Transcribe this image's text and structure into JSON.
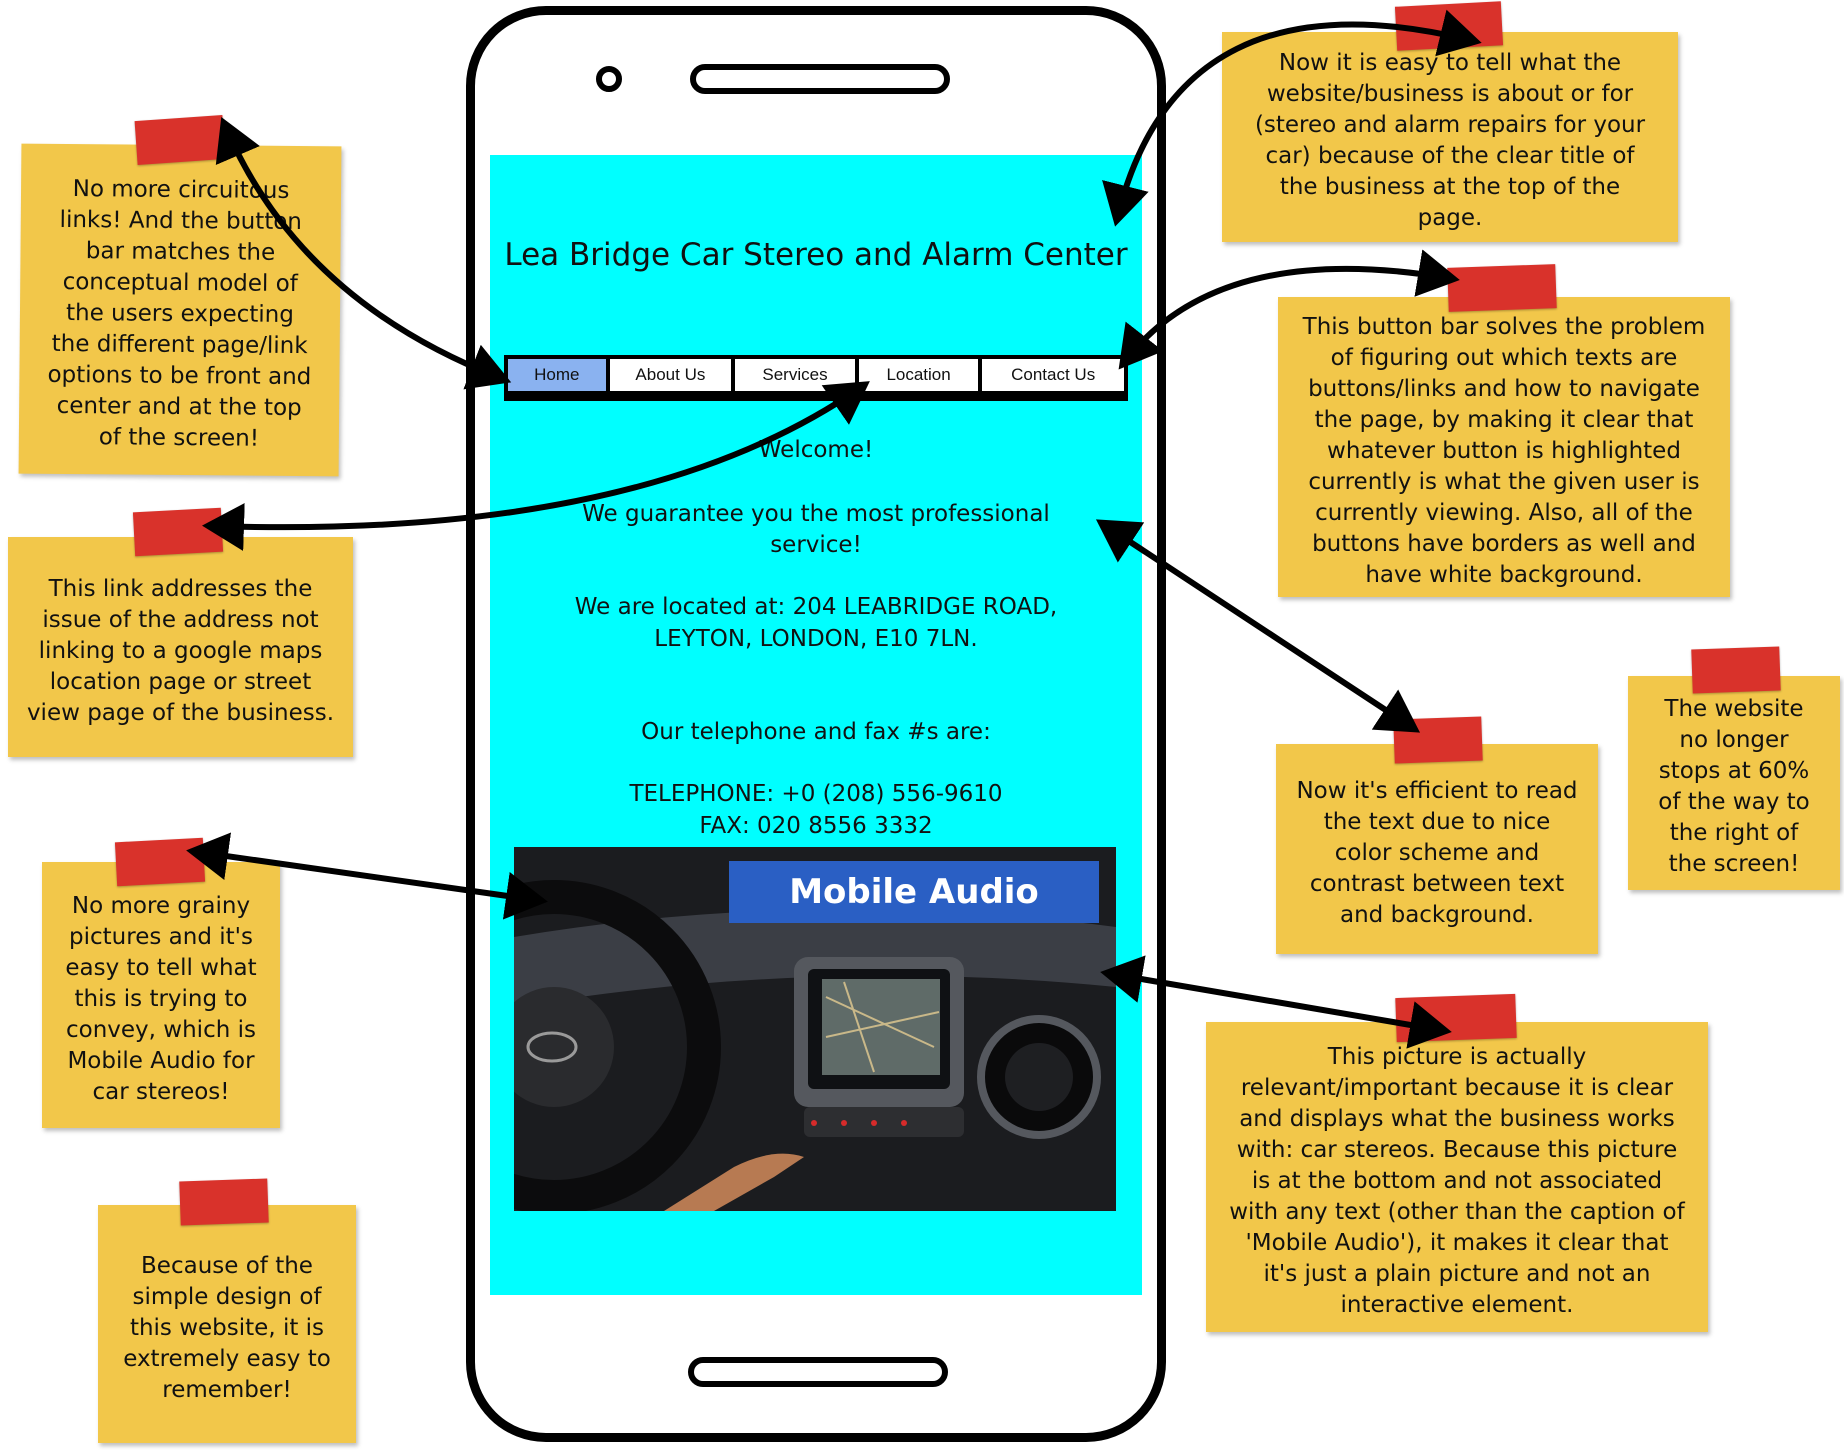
{
  "website": {
    "title": "Lea Bridge Car Stereo and Alarm Center",
    "nav": [
      {
        "label": "Home",
        "active": true
      },
      {
        "label": "About Us",
        "active": false
      },
      {
        "label": "Services",
        "active": false
      },
      {
        "label": "Location",
        "active": false
      },
      {
        "label": "Contact Us",
        "active": false
      }
    ],
    "welcome": "Welcome!",
    "guarantee": "We guarantee you the most professional service!",
    "location_line1": "We are located at: 204 LEABRIDGE ROAD,",
    "location_line2": "LEYTON, LONDON, E10 7LN.",
    "contact_intro": "Our telephone and fax #s are:",
    "telephone": "TELEPHONE: +0 (208) 556-9610",
    "fax": "FAX: 020 8556 3332",
    "image_caption": "Mobile Audio",
    "colors": {
      "background": "#00ffff",
      "active_button": "#8ab2f0",
      "note": "#f2c74a",
      "tape": "#d9322b",
      "banner": "#2a5fc4"
    }
  },
  "notes": {
    "circuitous": "No more circuitous\nlinks!  And the button\nbar matches the\nconceptual model of\nthe users expecting\nthe different page/link\noptions to be front and\ncenter and at the top\nof the screen!",
    "location_link": "This link addresses the\nissue of the address not\nlinking to a google maps\nlocation page or street\nview page of the business.",
    "grainy": "No more grainy\npictures and it's\neasy to tell what\nthis is trying to\nconvey, which is\nMobile Audio for\ncar stereos!",
    "simple": "Because of the\nsimple design of\nthis website, it is\nextremely easy to\nremember!",
    "title": "Now it is easy to tell what the\nwebsite/business is about or for\n(stereo and alarm repairs for your\ncar) because of the clear title of\nthe business at the top of the\npage.",
    "button_bar": "This button bar solves the problem\nof figuring out which texts are\nbuttons/links and how to navigate\nthe page, by making it clear that\nwhatever button is highlighted\ncurrently is what the given user is\ncurrently viewing.  Also, all of the\nbuttons have borders as well and\nhave white background.",
    "efficient": "Now it's efficient to read\nthe text due to nice\ncolor scheme and\ncontrast between text\nand background.",
    "sixty": "The website\nno longer\nstops at 60%\nof the way to\nthe right of\nthe screen!",
    "picture": "This picture is actually\nrelevant/important because it is clear\nand displays what the business works\nwith: car stereos.  Because this picture\nis at the bottom and not associated\nwith any text (other than the caption of\n'Mobile Audio'), it makes it clear that\nit's just a plain picture and not an\ninteractive element."
  }
}
